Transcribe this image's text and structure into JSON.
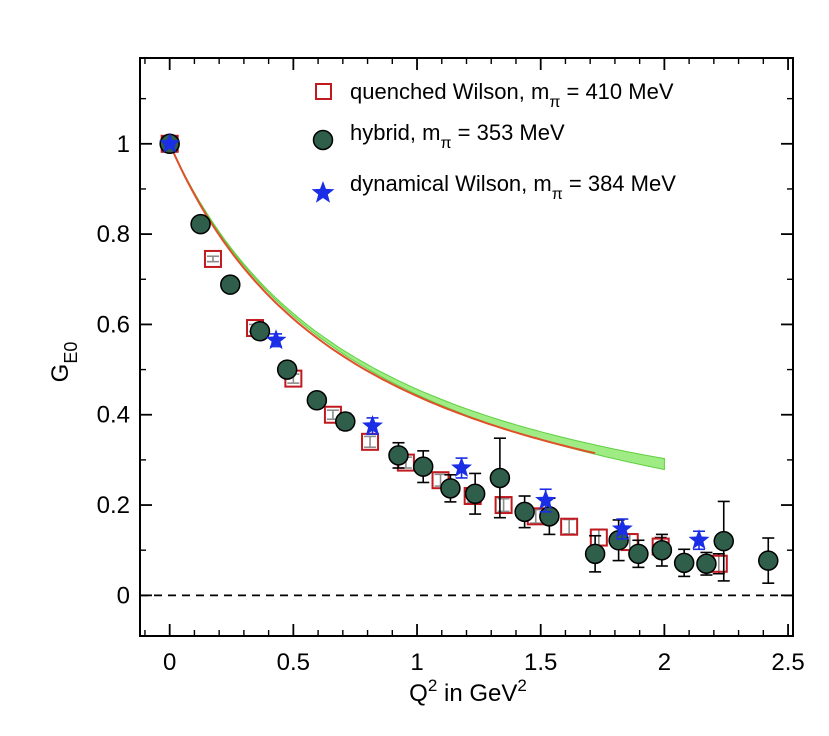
{
  "chart_data": {
    "type": "scatter",
    "xlabel": {
      "base": "Q",
      "sup1": "2",
      "mid": " in GeV",
      "sup2": "2"
    },
    "ylabel": {
      "base": "G",
      "sub": "E0"
    },
    "xlim": [
      -0.12,
      2.52
    ],
    "ylim": [
      -0.09,
      1.19
    ],
    "xticks": [
      0,
      0.5,
      1,
      1.5,
      2,
      2.5
    ],
    "xtick_labels": [
      "0",
      "0.5",
      "1",
      "1.5",
      "2",
      "2.5"
    ],
    "yticks": [
      0,
      0.2,
      0.4,
      0.6,
      0.8,
      1
    ],
    "ytick_labels": [
      "0",
      "0.2",
      "0.4",
      "0.6",
      "0.8",
      "1"
    ],
    "zero_line": {
      "y": 0,
      "style": "dashed"
    },
    "legend_placement": "top-right",
    "colors": {
      "quenched": "#c0191f",
      "hybrid_fill": "#2f5e4b",
      "dynamical": "#1a2ee6",
      "band": "#8ee86e",
      "fit": "#e0502a"
    },
    "series": [
      {
        "name": "quenched Wilson, m",
        "name_sub": "π",
        "name_rest": " = 410 MeV",
        "marker": "square",
        "points": [
          {
            "x": 0.0,
            "y": 1.0,
            "err": 0.003
          },
          {
            "x": 0.175,
            "y": 0.745,
            "err": 0.006
          },
          {
            "x": 0.345,
            "y": 0.592,
            "err": 0.008
          },
          {
            "x": 0.5,
            "y": 0.48,
            "err": 0.01
          },
          {
            "x": 0.66,
            "y": 0.4,
            "err": 0.01
          },
          {
            "x": 0.81,
            "y": 0.34,
            "err": 0.012
          },
          {
            "x": 0.955,
            "y": 0.294,
            "err": 0.012
          },
          {
            "x": 1.095,
            "y": 0.255,
            "err": 0.013
          },
          {
            "x": 1.225,
            "y": 0.22,
            "err": 0.014
          },
          {
            "x": 1.35,
            "y": 0.2,
            "err": 0.014
          },
          {
            "x": 1.48,
            "y": 0.175,
            "err": 0.015
          },
          {
            "x": 1.615,
            "y": 0.152,
            "err": 0.016
          },
          {
            "x": 1.735,
            "y": 0.128,
            "err": 0.018
          },
          {
            "x": 1.86,
            "y": 0.118,
            "err": 0.018
          },
          {
            "x": 1.985,
            "y": 0.108,
            "err": 0.02
          },
          {
            "x": 2.22,
            "y": 0.07,
            "err": 0.022
          }
        ]
      },
      {
        "name": "hybrid, m",
        "name_sub": "π",
        "name_rest": " = 353 MeV",
        "marker": "circle",
        "points": [
          {
            "x": 0.0,
            "y": 1.0,
            "err": 0.004
          },
          {
            "x": 0.125,
            "y": 0.822,
            "err": 0.008
          },
          {
            "x": 0.245,
            "y": 0.688,
            "err": 0.01
          },
          {
            "x": 0.365,
            "y": 0.585,
            "err": 0.012
          },
          {
            "x": 0.475,
            "y": 0.5,
            "err": 0.015
          },
          {
            "x": 0.595,
            "y": 0.432,
            "err": 0.015
          },
          {
            "x": 0.71,
            "y": 0.385,
            "err": 0.018
          },
          {
            "x": 0.925,
            "y": 0.31,
            "err": 0.028
          },
          {
            "x": 1.025,
            "y": 0.285,
            "err": 0.035
          },
          {
            "x": 1.135,
            "y": 0.237,
            "err": 0.03
          },
          {
            "x": 1.235,
            "y": 0.225,
            "err": 0.045
          },
          {
            "x": 1.335,
            "y": 0.26,
            "err": 0.088
          },
          {
            "x": 1.435,
            "y": 0.185,
            "err": 0.035
          },
          {
            "x": 1.535,
            "y": 0.175,
            "err": 0.04
          },
          {
            "x": 1.72,
            "y": 0.092,
            "err": 0.04
          },
          {
            "x": 1.815,
            "y": 0.122,
            "err": 0.045
          },
          {
            "x": 1.895,
            "y": 0.092,
            "err": 0.03
          },
          {
            "x": 1.99,
            "y": 0.1,
            "err": 0.035
          },
          {
            "x": 2.08,
            "y": 0.072,
            "err": 0.03
          },
          {
            "x": 2.17,
            "y": 0.07,
            "err": 0.025
          },
          {
            "x": 2.24,
            "y": 0.12,
            "err": 0.088
          },
          {
            "x": 2.42,
            "y": 0.077,
            "err": 0.05
          }
        ]
      },
      {
        "name": "dynamical Wilson, m",
        "name_sub": "π",
        "name_rest": " = 384 MeV",
        "marker": "star",
        "points": [
          {
            "x": 0.0,
            "y": 1.0,
            "err": 0.004
          },
          {
            "x": 0.43,
            "y": 0.565,
            "err": 0.014
          },
          {
            "x": 0.82,
            "y": 0.375,
            "err": 0.018
          },
          {
            "x": 1.18,
            "y": 0.282,
            "err": 0.022
          },
          {
            "x": 1.52,
            "y": 0.21,
            "err": 0.025
          },
          {
            "x": 1.83,
            "y": 0.147,
            "err": 0.022
          },
          {
            "x": 2.14,
            "y": 0.122,
            "err": 0.02
          }
        ]
      }
    ],
    "fits": [
      {
        "kind": "band",
        "color": "band",
        "x_range": [
          0,
          2.0
        ],
        "m2": 0.82,
        "half_width": 0.012
      },
      {
        "kind": "line",
        "color": "fit",
        "x_range": [
          0,
          1.72
        ],
        "m2": 0.79
      }
    ]
  }
}
